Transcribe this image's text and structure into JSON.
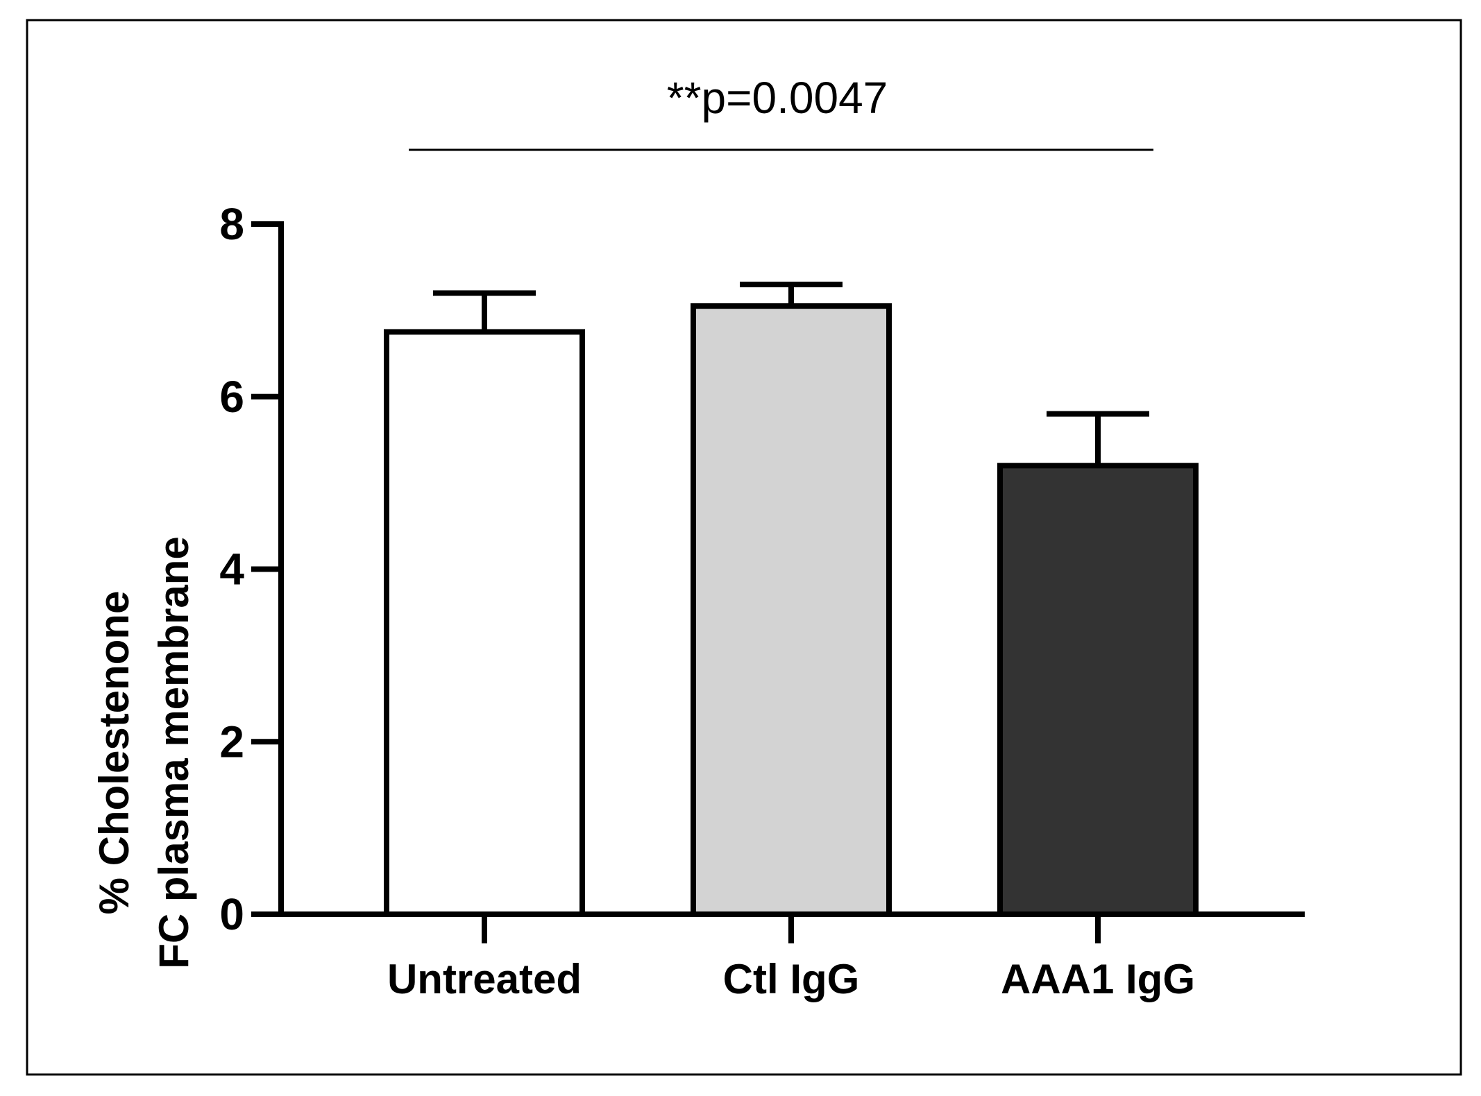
{
  "chart_data": {
    "type": "bar",
    "categories": [
      "Untreated",
      "Ctl IgG",
      "AAA1 IgG"
    ],
    "values": [
      6.75,
      7.05,
      5.2
    ],
    "errors": [
      0.45,
      0.25,
      0.6
    ],
    "bar_colors": [
      "#ffffff",
      "#d3d3d3",
      "#333333"
    ],
    "ylabel_lines": [
      "% Cholestenone",
      "FC plasma membrane"
    ],
    "ylim": [
      0,
      8
    ],
    "yticks": [
      0,
      2,
      4,
      6,
      8
    ],
    "ytick_labels": [
      "0",
      "2",
      "4",
      "6",
      "8"
    ],
    "annotation": {
      "text": "**p=0.0047",
      "from_category": 0,
      "to_category": 2
    }
  }
}
